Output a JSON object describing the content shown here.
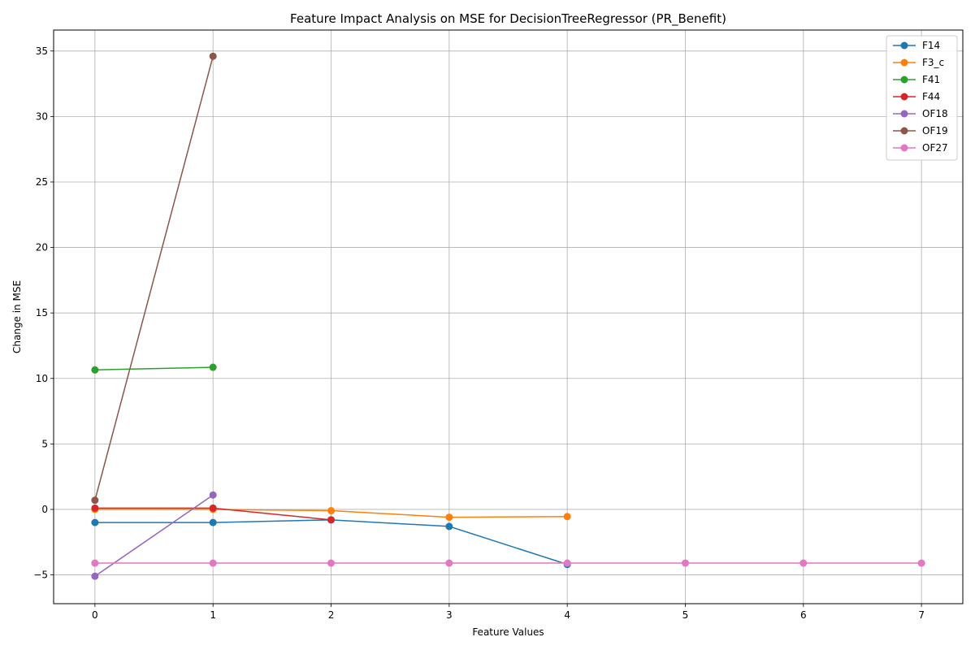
{
  "chart_data": {
    "type": "line",
    "title": "Feature Impact Analysis on MSE for DecisionTreeRegressor (PR_Benefit)",
    "xlabel": "Feature Values",
    "ylabel": "Change in MSE",
    "xlim": [
      -0.35,
      7.35
    ],
    "ylim": [
      -7.2,
      36.6
    ],
    "xticks": [
      0,
      1,
      2,
      3,
      4,
      5,
      6,
      7
    ],
    "yticks": [
      -5,
      0,
      5,
      10,
      15,
      20,
      25,
      30,
      35
    ],
    "grid": true,
    "legend_position": "top-right",
    "series": [
      {
        "name": "F14",
        "color": "#1f77b4",
        "x": [
          0,
          1,
          2,
          3,
          4
        ],
        "y": [
          -1.0,
          -1.0,
          -0.8,
          -1.3,
          -4.2
        ]
      },
      {
        "name": "F3_c",
        "color": "#ff7f0e",
        "x": [
          0,
          1,
          2,
          3,
          4
        ],
        "y": [
          0.0,
          0.0,
          -0.1,
          -0.6,
          -0.55
        ]
      },
      {
        "name": "F41",
        "color": "#2ca02c",
        "x": [
          0,
          1
        ],
        "y": [
          10.65,
          10.85
        ]
      },
      {
        "name": "F44",
        "color": "#d62728",
        "x": [
          0,
          1,
          2
        ],
        "y": [
          0.1,
          0.1,
          -0.8
        ]
      },
      {
        "name": "OF18",
        "color": "#9467bd",
        "x": [
          0,
          1
        ],
        "y": [
          -5.1,
          1.1
        ]
      },
      {
        "name": "OF19",
        "color": "#8c564b",
        "x": [
          0,
          1
        ],
        "y": [
          0.7,
          34.6
        ]
      },
      {
        "name": "OF27",
        "color": "#e377c2",
        "x": [
          0,
          1,
          2,
          3,
          4,
          5,
          6,
          7
        ],
        "y": [
          -4.1,
          -4.1,
          -4.1,
          -4.1,
          -4.1,
          -4.1,
          -4.1,
          -4.1
        ]
      }
    ]
  }
}
